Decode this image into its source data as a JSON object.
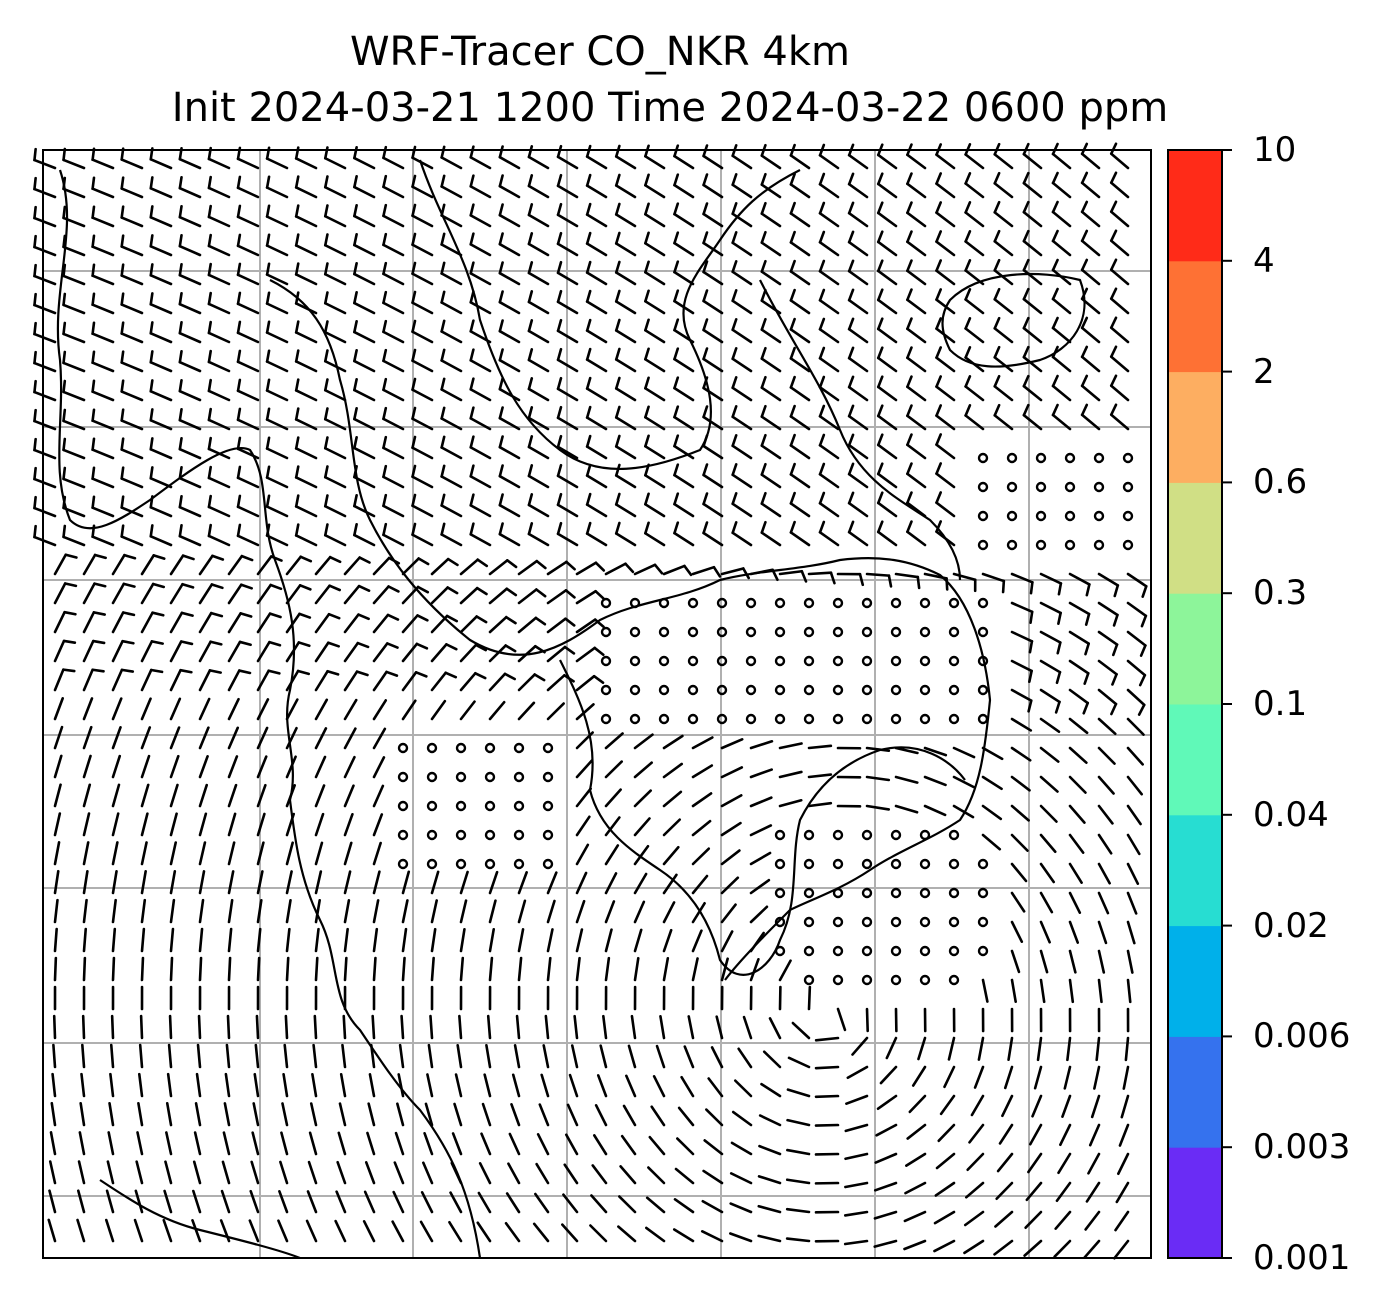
{
  "title": {
    "line1": "WRF-Tracer CO_NKR 4km",
    "line2": "Init 2024-03-21 1200 Time 2024-03-22 0600 ppm"
  },
  "colorbar": {
    "ticks": [
      "0.001",
      "0.003",
      "0.006",
      "0.02",
      "0.04",
      "0.1",
      "0.3",
      "0.6",
      "2",
      "4",
      "10"
    ],
    "colors": [
      "#6a2cf5",
      "#3572ee",
      "#00b0ea",
      "#27ddd2",
      "#60f9b8",
      "#8df59a",
      "#d0df85",
      "#fdae61",
      "#fe7134",
      "#ff2b18"
    ]
  },
  "map": {
    "wind_field": "barbs",
    "coastlines": true,
    "gridlines": true
  }
}
